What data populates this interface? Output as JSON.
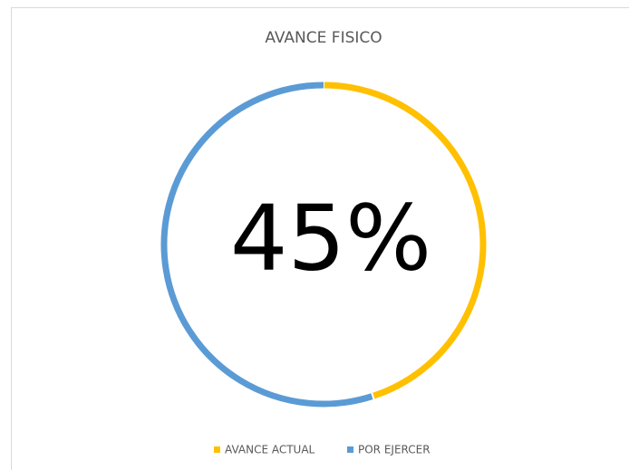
{
  "chart_data": {
    "type": "donut",
    "title": "AVANCE FISICO",
    "categories": [
      "AVANCE ACTUAL",
      "POR EJERCER"
    ],
    "values": [
      45,
      55
    ],
    "value_labels": [
      "45%",
      null
    ],
    "colors": [
      "#FFC000",
      "#5B9BD5"
    ],
    "legend": "bottom"
  }
}
